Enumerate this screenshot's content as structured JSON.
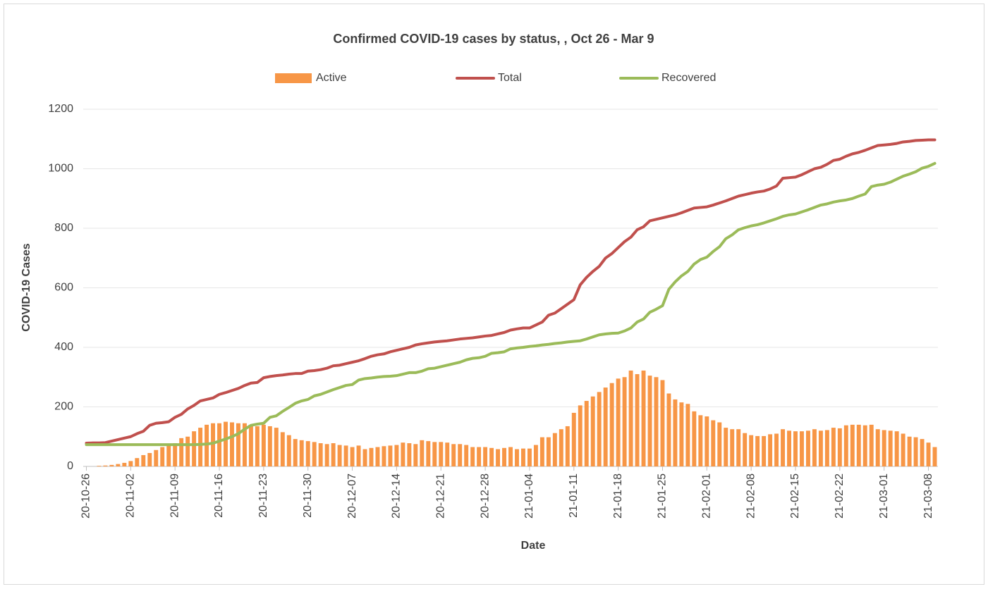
{
  "chart_data": {
    "type": "combo",
    "title": "Confirmed COVID-19 cases by status, , Oct 26 - Mar 9",
    "x_label": "Date",
    "y_label": "COVID-19 Cases",
    "legend": "top",
    "grid": true,
    "ylim": [
      0,
      1200
    ],
    "yticks": [
      0,
      200,
      400,
      600,
      800,
      1000,
      1200
    ],
    "categories": [
      "20-10-26",
      null,
      null,
      null,
      null,
      null,
      null,
      "20-11-02",
      null,
      null,
      null,
      null,
      null,
      null,
      "20-11-09",
      null,
      null,
      null,
      null,
      null,
      null,
      "20-11-16",
      null,
      null,
      null,
      null,
      null,
      null,
      "20-11-23",
      null,
      null,
      null,
      null,
      null,
      null,
      "20-11-30",
      null,
      null,
      null,
      null,
      null,
      null,
      "20-12-07",
      null,
      null,
      null,
      null,
      null,
      null,
      "20-12-14",
      null,
      null,
      null,
      null,
      null,
      null,
      "20-12-21",
      null,
      null,
      null,
      null,
      null,
      null,
      "20-12-28",
      null,
      null,
      null,
      null,
      null,
      null,
      "21-01-04",
      null,
      null,
      null,
      null,
      null,
      null,
      "21-01-11",
      null,
      null,
      null,
      null,
      null,
      null,
      "21-01-18",
      null,
      null,
      null,
      null,
      null,
      null,
      "21-01-25",
      null,
      null,
      null,
      null,
      null,
      null,
      "21-02-01",
      null,
      null,
      null,
      null,
      null,
      null,
      "21-02-08",
      null,
      null,
      null,
      null,
      null,
      null,
      "21-02-15",
      null,
      null,
      null,
      null,
      null,
      null,
      "21-02-22",
      null,
      null,
      null,
      null,
      null,
      null,
      "21-03-01",
      null,
      null,
      null,
      null,
      null,
      null,
      "21-03-08",
      null
    ],
    "series": [
      {
        "name": "Active",
        "type": "bar",
        "color": "#f79646",
        "values": [
          0,
          0,
          2,
          3,
          5,
          8,
          12,
          18,
          28,
          38,
          45,
          55,
          65,
          70,
          78,
          95,
          100,
          118,
          130,
          140,
          145,
          145,
          150,
          148,
          145,
          145,
          138,
          135,
          140,
          135,
          130,
          115,
          105,
          92,
          88,
          85,
          82,
          78,
          75,
          78,
          72,
          70,
          65,
          70,
          58,
          62,
          65,
          68,
          70,
          72,
          80,
          78,
          75,
          88,
          85,
          82,
          82,
          80,
          75,
          75,
          72,
          65,
          65,
          65,
          62,
          58,
          62,
          65,
          58,
          60,
          60,
          72,
          98,
          98,
          112,
          125,
          135,
          180,
          205,
          220,
          235,
          250,
          265,
          280,
          295,
          300,
          322,
          310,
          322,
          305,
          300,
          290,
          245,
          225,
          215,
          210,
          185,
          172,
          168,
          155,
          148,
          130,
          125,
          125,
          112,
          105,
          102,
          102,
          108,
          110,
          125,
          120,
          118,
          118,
          120,
          125,
          120,
          122,
          130,
          128,
          138,
          140,
          140,
          138,
          140,
          125,
          122,
          120,
          118,
          110,
          100,
          98,
          92,
          80,
          65
        ]
      },
      {
        "name": "Total",
        "type": "line",
        "color": "#c0504d",
        "values": [
          78,
          79,
          79,
          80,
          85,
          90,
          95,
          100,
          110,
          118,
          138,
          145,
          147,
          150,
          165,
          175,
          193,
          205,
          220,
          225,
          230,
          242,
          248,
          255,
          262,
          272,
          280,
          282,
          298,
          302,
          305,
          307,
          310,
          312,
          312,
          320,
          322,
          325,
          330,
          338,
          340,
          345,
          350,
          355,
          362,
          370,
          375,
          378,
          385,
          390,
          395,
          400,
          408,
          412,
          415,
          418,
          420,
          422,
          425,
          428,
          430,
          432,
          435,
          438,
          440,
          445,
          450,
          458,
          462,
          465,
          465,
          475,
          485,
          508,
          515,
          530,
          545,
          560,
          610,
          635,
          655,
          672,
          700,
          715,
          735,
          755,
          770,
          795,
          805,
          825,
          830,
          835,
          840,
          845,
          852,
          860,
          868,
          870,
          872,
          878,
          885,
          892,
          900,
          908,
          913,
          918,
          922,
          925,
          932,
          942,
          968,
          970,
          972,
          980,
          990,
          1000,
          1005,
          1015,
          1028,
          1032,
          1042,
          1050,
          1055,
          1062,
          1070,
          1078,
          1080,
          1082,
          1085,
          1090,
          1092,
          1095,
          1096,
          1097,
          1097
        ]
      },
      {
        "name": "Recovered",
        "type": "line",
        "color": "#9bbb59",
        "values": [
          73,
          73,
          73,
          73,
          73,
          73,
          73,
          73,
          73,
          73,
          73,
          73,
          73,
          73,
          73,
          73,
          73,
          73,
          74,
          75,
          78,
          85,
          92,
          100,
          110,
          125,
          138,
          142,
          145,
          165,
          170,
          185,
          198,
          212,
          220,
          225,
          237,
          242,
          250,
          258,
          265,
          272,
          275,
          290,
          295,
          297,
          300,
          302,
          303,
          305,
          310,
          315,
          315,
          320,
          328,
          330,
          335,
          340,
          345,
          350,
          358,
          363,
          365,
          370,
          380,
          382,
          385,
          395,
          398,
          400,
          403,
          405,
          408,
          410,
          413,
          415,
          418,
          420,
          422,
          428,
          435,
          442,
          445,
          447,
          448,
          455,
          465,
          485,
          495,
          518,
          528,
          540,
          595,
          620,
          640,
          655,
          680,
          695,
          703,
          722,
          738,
          765,
          778,
          795,
          802,
          808,
          812,
          818,
          825,
          832,
          840,
          845,
          848,
          855,
          862,
          870,
          878,
          882,
          888,
          892,
          895,
          900,
          908,
          915,
          940,
          945,
          948,
          955,
          965,
          975,
          982,
          990,
          1002,
          1008,
          1018
        ]
      }
    ]
  }
}
